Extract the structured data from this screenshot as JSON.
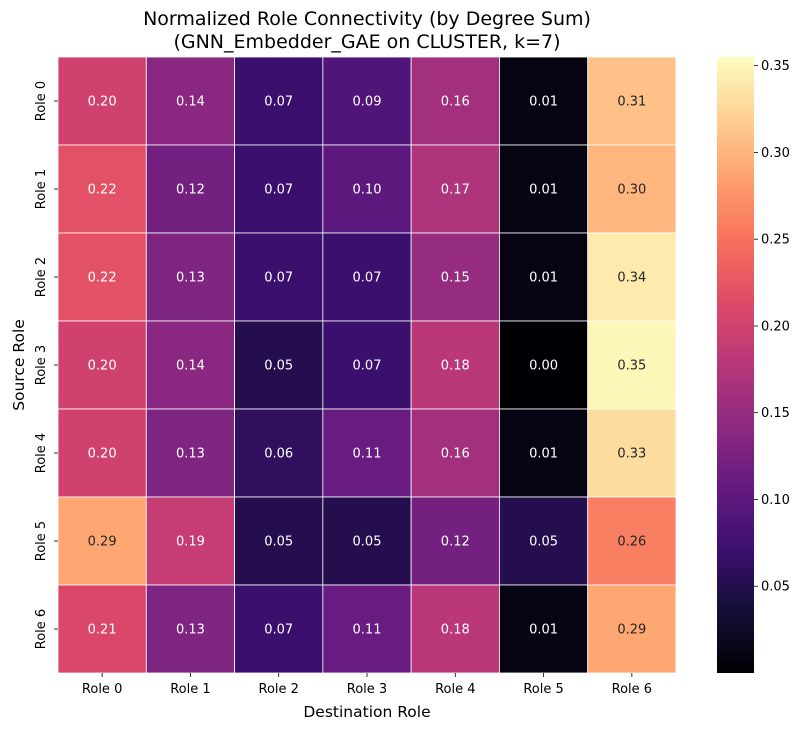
{
  "chart_data": {
    "type": "heatmap",
    "title": "Normalized Role Connectivity (by Degree Sum)",
    "subtitle": "(GNN_Embedder_GAE on CLUSTER, k=7)",
    "xlabel": "Destination Role",
    "ylabel": "Source Role",
    "x_categories": [
      "Role 0",
      "Role 1",
      "Role 2",
      "Role 3",
      "Role 4",
      "Role 5",
      "Role 6"
    ],
    "y_categories": [
      "Role 0",
      "Role 1",
      "Role 2",
      "Role 3",
      "Role 4",
      "Role 5",
      "Role 6"
    ],
    "values": [
      [
        0.2,
        0.14,
        0.07,
        0.09,
        0.16,
        0.01,
        0.31
      ],
      [
        0.22,
        0.12,
        0.07,
        0.1,
        0.17,
        0.01,
        0.3
      ],
      [
        0.22,
        0.13,
        0.07,
        0.07,
        0.15,
        0.01,
        0.34
      ],
      [
        0.2,
        0.14,
        0.05,
        0.07,
        0.18,
        0.0,
        0.35
      ],
      [
        0.2,
        0.13,
        0.06,
        0.11,
        0.16,
        0.01,
        0.33
      ],
      [
        0.29,
        0.19,
        0.05,
        0.05,
        0.12,
        0.05,
        0.26
      ],
      [
        0.21,
        0.13,
        0.07,
        0.11,
        0.18,
        0.01,
        0.29
      ]
    ],
    "colormap": "magma",
    "color_range": [
      0.0,
      0.355
    ],
    "colorbar_ticks": [
      0.05,
      0.1,
      0.15,
      0.2,
      0.25,
      0.3,
      0.35
    ],
    "colorbar_tick_labels": [
      "0.05",
      "0.10",
      "0.15",
      "0.20",
      "0.25",
      "0.30",
      "0.35"
    ],
    "annotations": true,
    "grid": false
  }
}
